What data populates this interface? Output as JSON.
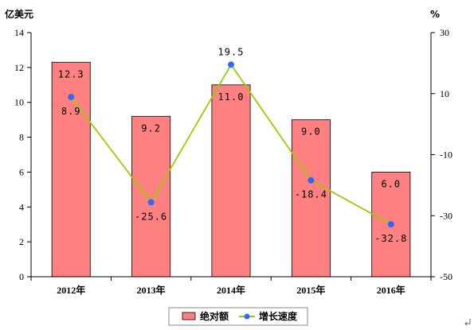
{
  "chart_data": {
    "type": "bar",
    "categories": [
      "2012年",
      "2013年",
      "2014年",
      "2015年",
      "2016年"
    ],
    "series": [
      {
        "name": "绝对额",
        "type": "bar",
        "axis": "left",
        "values": [
          12.3,
          9.2,
          11.0,
          9.0,
          6.0
        ],
        "labels": [
          "12.3",
          "9.2",
          "11.0",
          "9.0",
          "6.0"
        ]
      },
      {
        "name": "增长速度",
        "type": "line",
        "axis": "right",
        "values": [
          8.9,
          -25.6,
          19.5,
          -18.4,
          -32.8
        ],
        "labels": [
          "8.9",
          "-25.6",
          "19.5",
          "-18.4",
          "-32.8"
        ]
      }
    ],
    "ylabel": "亿美元",
    "y2label": "%",
    "ylim": [
      0,
      14
    ],
    "y2lim": [
      -50,
      30
    ],
    "yticks": [
      "0",
      "2",
      "4",
      "6",
      "8",
      "10",
      "12",
      "14"
    ],
    "y2ticks": [
      "-50",
      "-30",
      "-10",
      "10",
      "30"
    ],
    "grid": false,
    "legend": "bottom-center",
    "colors": {
      "bar_fill": "#ff8080",
      "bar_stroke": "#000000",
      "line": "#99cc00",
      "marker": "#3366ff"
    }
  }
}
